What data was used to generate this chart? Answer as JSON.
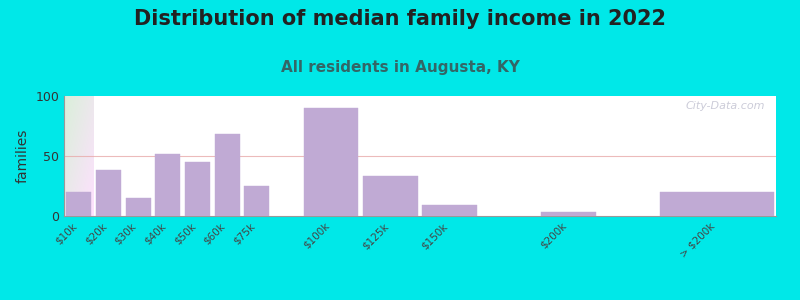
{
  "title": "Distribution of median family income in 2022",
  "subtitle": "All residents in Augusta, KY",
  "ylabel": "families",
  "categories": [
    "$10k",
    "$20k",
    "$30k",
    "$40k",
    "$50k",
    "$60k",
    "$75k",
    "$100k",
    "$125k",
    "$150k",
    "$200k",
    "> $200k"
  ],
  "values": [
    20,
    38,
    15,
    52,
    45,
    68,
    25,
    90,
    33,
    9,
    3,
    20
  ],
  "bar_color": "#c0aad4",
  "ylim": [
    0,
    100
  ],
  "yticks": [
    0,
    50,
    100
  ],
  "background_outer": "#00e8e8",
  "bg_top_left": "#d8efd8",
  "bg_bottom_right": "#f0eaf8",
  "grid_line_color": "#e8aaaa",
  "title_fontsize": 15,
  "subtitle_fontsize": 11,
  "ylabel_fontsize": 10,
  "watermark": "City-Data.com",
  "x_positions": [
    0,
    1,
    2,
    3,
    4,
    5,
    6,
    8,
    10,
    12,
    16,
    20
  ],
  "bar_widths": [
    1,
    1,
    1,
    1,
    1,
    1,
    1,
    2,
    2,
    2,
    2,
    4
  ]
}
